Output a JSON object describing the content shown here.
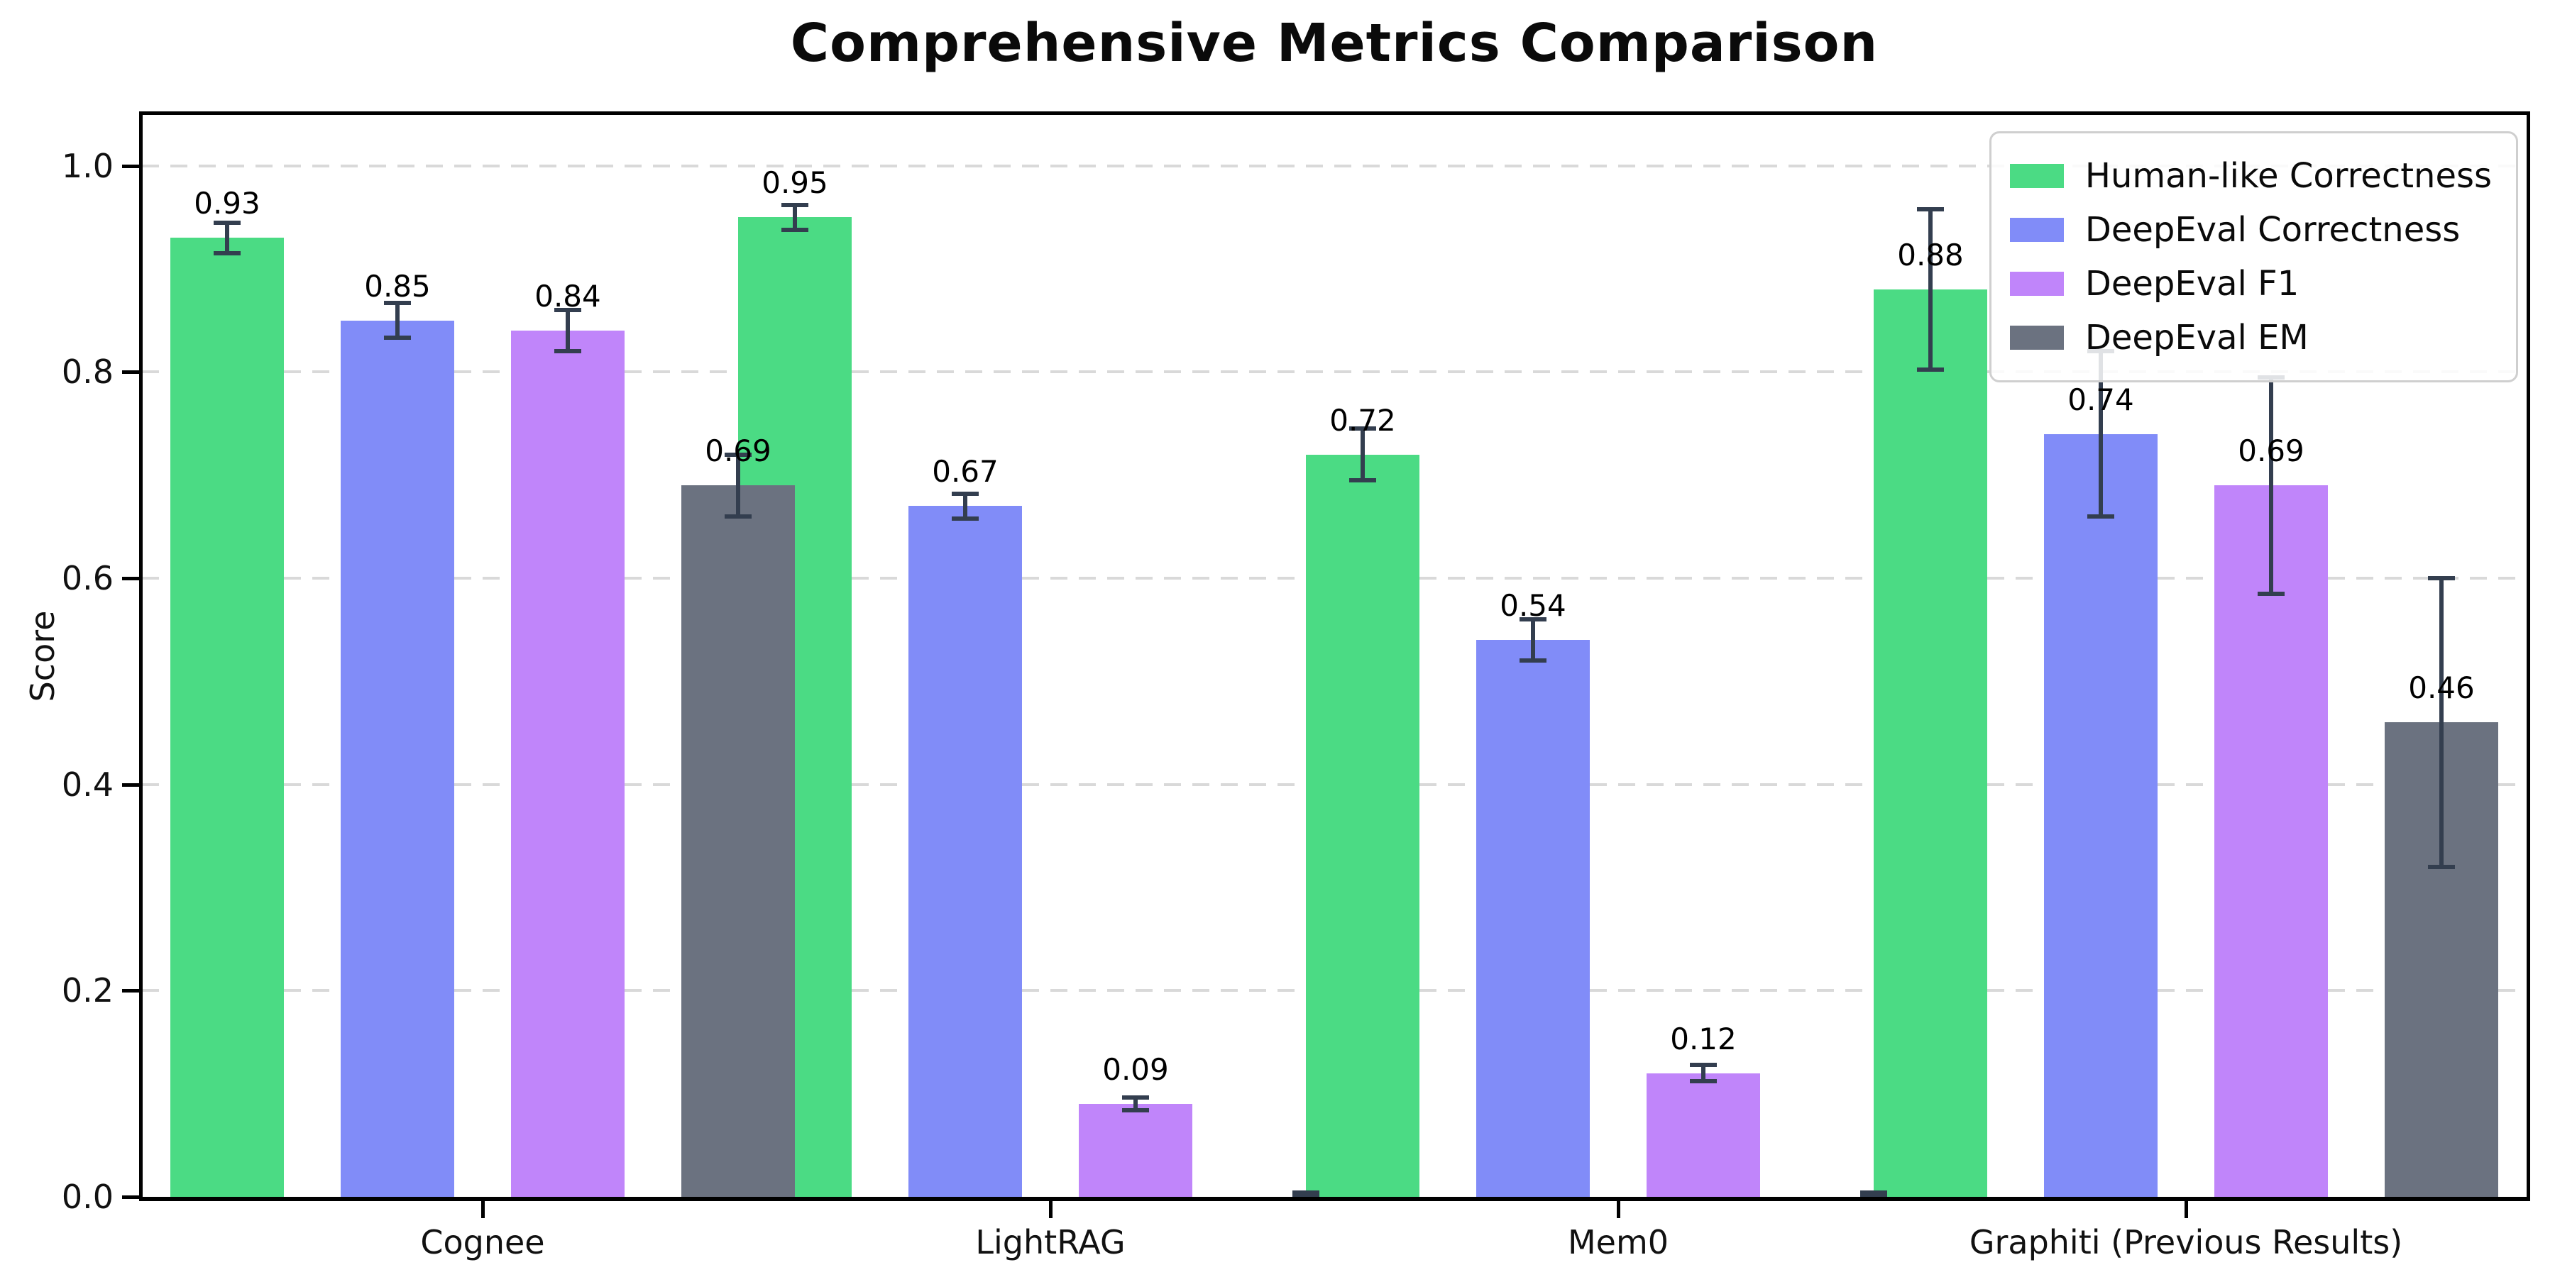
{
  "chart_data": {
    "type": "bar",
    "title": "Comprehensive Metrics Comparison",
    "ylabel": "Score",
    "xlabel": "",
    "categories": [
      "Cognee",
      "LightRAG",
      "Mem0",
      "Graphiti (Previous Results)"
    ],
    "series": [
      {
        "name": "Human-like Correctness",
        "color": "#4bdb84",
        "values": [
          0.93,
          0.95,
          0.72,
          0.88
        ],
        "errors": [
          0.015,
          0.012,
          0.025,
          0.078
        ],
        "value_labels": [
          "0.93",
          "0.95",
          "0.72",
          "0.88"
        ]
      },
      {
        "name": "DeepEval Correctness",
        "color": "#818cf8",
        "values": [
          0.85,
          0.67,
          0.54,
          0.74
        ],
        "errors": [
          0.017,
          0.012,
          0.02,
          0.08
        ],
        "value_labels": [
          "0.85",
          "0.67",
          "0.54",
          "0.74"
        ]
      },
      {
        "name": "DeepEval F1",
        "color": "#c085fa",
        "values": [
          0.84,
          0.09,
          0.12,
          0.69
        ],
        "errors": [
          0.02,
          0.006,
          0.008,
          0.105
        ],
        "value_labels": [
          "0.84",
          "0.09",
          "0.12",
          "0.69"
        ]
      },
      {
        "name": "DeepEval EM",
        "color": "#6b7280",
        "values": [
          0.69,
          0.0,
          0.0,
          0.46
        ],
        "errors": [
          0.03,
          0.004,
          0.004,
          0.14
        ],
        "value_labels": [
          "0.69",
          "",
          "",
          "0.46"
        ]
      }
    ],
    "ylim": [
      0,
      1.05
    ],
    "yticks": {
      "values": [
        0.0,
        0.2,
        0.4,
        0.6,
        0.8,
        1.0
      ],
      "labels": [
        "0.0",
        "0.2",
        "0.4",
        "0.6",
        "0.8",
        "1.0"
      ]
    },
    "grid": {
      "axis": "y",
      "style": "dashed",
      "color": "#d9d9d9"
    },
    "legend": {
      "position": "upper right"
    },
    "error_bar_color": "#333e4f",
    "axis_color": "#000000",
    "background": "#ffffff"
  }
}
